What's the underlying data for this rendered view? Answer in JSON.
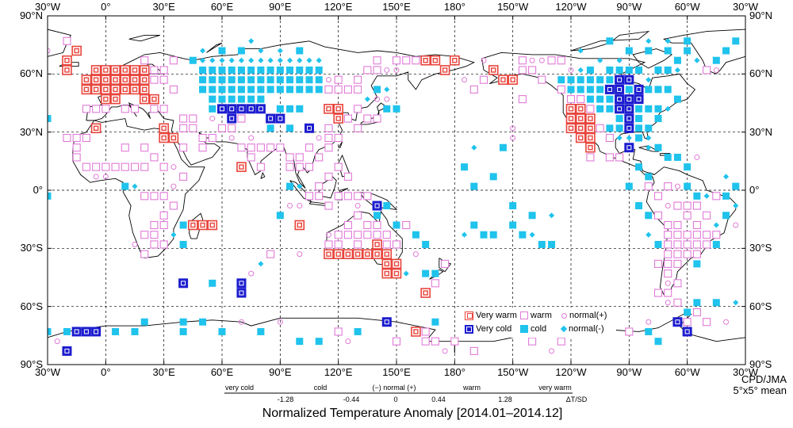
{
  "map": {
    "lon_labels": [
      "30°W",
      "0°",
      "30°E",
      "60°E",
      "90°E",
      "120°E",
      "150°E",
      "180°",
      "150°W",
      "120°W",
      "90°W",
      "60°W",
      "30°W"
    ],
    "lat_labels": [
      "90°N",
      "60°N",
      "30°N",
      "0°",
      "30°S",
      "60°S",
      "90°S"
    ],
    "colors": {
      "very_warm": "#e8453c",
      "warm": "#e07ad8",
      "very_cold": "#1c1ccf",
      "cold": "#1fc3ec",
      "coast": "#000000",
      "grid": "#000000"
    }
  },
  "legend": {
    "very_warm": "Very warm",
    "warm": "warm",
    "normal_plus": "normal(+)",
    "very_cold": "Very cold",
    "cold": "cold",
    "normal_minus": "normal(-)"
  },
  "credit": {
    "line1": "CPD/JMA",
    "line2": "5°x5° mean"
  },
  "scale": {
    "categories": [
      "very cold",
      "cold",
      "(−) normal (+)",
      "warm",
      "very warm"
    ],
    "thresholds": [
      "-1.28",
      "-0.44",
      "0",
      "0.44",
      "1.28"
    ],
    "unit": "ΔT/SD"
  },
  "caption": "Normalized Temperature Anomaly [2014.01–2014.12]"
}
